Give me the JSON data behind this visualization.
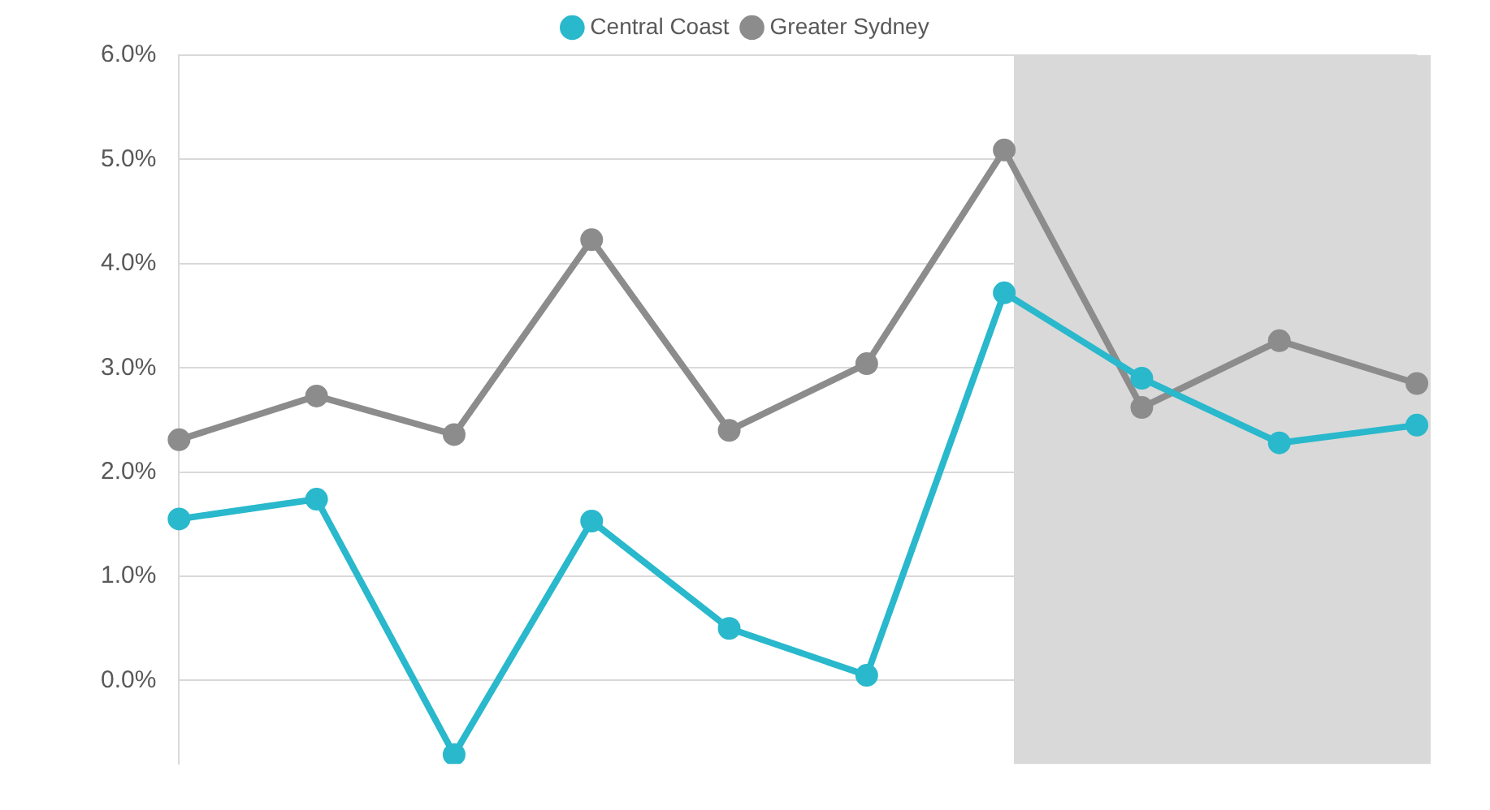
{
  "chart_data": {
    "type": "line",
    "categories": [
      null,
      null,
      null,
      null,
      null,
      null,
      null,
      null,
      null,
      null
    ],
    "series": [
      {
        "name": "Central Coast",
        "color": "#29b8cc",
        "values": [
          1.55,
          1.74,
          -0.71,
          1.53,
          0.5,
          0.05,
          3.72,
          2.9,
          2.28,
          2.45
        ]
      },
      {
        "name": "Greater Sydney",
        "color": "#8c8c8c",
        "values": [
          2.31,
          2.73,
          2.36,
          4.23,
          2.4,
          3.04,
          5.09,
          2.62,
          3.26,
          2.85
        ]
      }
    ],
    "ylim": [
      -0.8,
      6
    ],
    "yticks": [
      {
        "value": 0,
        "label": "0.0%"
      },
      {
        "value": 1,
        "label": "1.0%"
      },
      {
        "value": 2,
        "label": "2.0%"
      },
      {
        "value": 3,
        "label": "3.0%"
      },
      {
        "value": 4,
        "label": "4.0%"
      },
      {
        "value": 5,
        "label": "5.0%"
      },
      {
        "value": 6,
        "label": "6.0%"
      }
    ],
    "grid": "y",
    "legend": "top",
    "marker": "circle",
    "line_style": "solid"
  }
}
